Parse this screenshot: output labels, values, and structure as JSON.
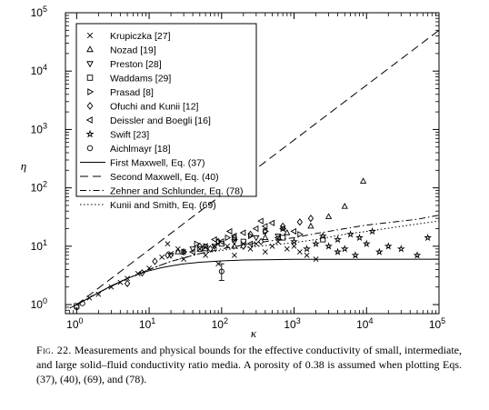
{
  "chart_data": {
    "type": "scatter",
    "xlabel": "κ",
    "ylabel": "η",
    "x_scale": "log",
    "y_scale": "log",
    "xlim": [
      0.7,
      100000
    ],
    "ylim": [
      0.7,
      100000
    ],
    "x_ticks": [
      {
        "value": 1,
        "base": "10",
        "exp": "0"
      },
      {
        "value": 10,
        "base": "10",
        "exp": "1"
      },
      {
        "value": 100,
        "base": "10",
        "exp": "2"
      },
      {
        "value": 1000,
        "base": "10",
        "exp": "3"
      },
      {
        "value": 10000,
        "base": "10",
        "exp": "4"
      },
      {
        "value": 100000,
        "base": "10",
        "exp": "5"
      }
    ],
    "y_ticks": [
      {
        "value": 1,
        "base": "10",
        "exp": "0"
      },
      {
        "value": 10,
        "base": "10",
        "exp": "1"
      },
      {
        "value": 100,
        "base": "10",
        "exp": "2"
      },
      {
        "value": 1000,
        "base": "10",
        "exp": "3"
      },
      {
        "value": 10000,
        "base": "10",
        "exp": "4"
      },
      {
        "value": 100000,
        "base": "10",
        "exp": "5"
      }
    ],
    "legend_position": "top-left",
    "series": [
      {
        "name": "Krupiczka [27]",
        "marker": "x",
        "points": [
          [
            1.5,
            1.3
          ],
          [
            2,
            1.5
          ],
          [
            3,
            2
          ],
          [
            4,
            2.4
          ],
          [
            5,
            2.8
          ],
          [
            7,
            3.4
          ],
          [
            10,
            4.2
          ],
          [
            15,
            6.5
          ],
          [
            20,
            7.5
          ],
          [
            30,
            8
          ],
          [
            50,
            9
          ],
          [
            80,
            10
          ],
          [
            120,
            10
          ],
          [
            200,
            11
          ],
          [
            300,
            11
          ],
          [
            500,
            10
          ],
          [
            800,
            9
          ],
          [
            1200,
            8
          ],
          [
            18,
            11
          ],
          [
            25,
            9
          ],
          [
            60,
            7
          ],
          [
            150,
            7
          ],
          [
            250,
            9
          ],
          [
            400,
            8
          ],
          [
            600,
            12
          ],
          [
            1000,
            10
          ],
          [
            1500,
            7
          ],
          [
            2000,
            6
          ],
          [
            30,
            6
          ],
          [
            90,
            5
          ]
        ]
      },
      {
        "name": "Nozad [19]",
        "marker": "triangle-up",
        "points": [
          [
            9000,
            130
          ],
          [
            5000,
            48
          ],
          [
            3000,
            32
          ],
          [
            1700,
            22
          ],
          [
            800,
            17
          ],
          [
            400,
            14
          ],
          [
            150,
            10
          ],
          [
            60,
            9
          ],
          [
            25,
            8
          ]
        ]
      },
      {
        "name": "Preston [28]",
        "marker": "triangle-down",
        "points": [
          [
            20,
            7
          ],
          [
            40,
            9
          ],
          [
            80,
            10
          ],
          [
            150,
            12
          ],
          [
            300,
            14
          ],
          [
            600,
            15
          ]
        ]
      },
      {
        "name": "Waddams [29]",
        "marker": "square",
        "points": [
          [
            1,
            0.95
          ],
          [
            50,
            9
          ],
          [
            200,
            12
          ],
          [
            700,
            14
          ],
          [
            2500,
            13
          ],
          [
            100,
            11
          ]
        ]
      },
      {
        "name": "Prasad [8]",
        "marker": "triangle-right",
        "points": [
          [
            30,
            8
          ],
          [
            60,
            10
          ],
          [
            90,
            12
          ],
          [
            150,
            13
          ],
          [
            250,
            15
          ],
          [
            400,
            18
          ],
          [
            700,
            20
          ],
          [
            1200,
            16
          ],
          [
            45,
            11
          ],
          [
            120,
            14
          ]
        ]
      },
      {
        "name": "Ofuchi and Kunii [12]",
        "marker": "diamond",
        "points": [
          [
            5,
            2.3
          ],
          [
            8,
            3.5
          ],
          [
            12,
            5.5
          ],
          [
            18,
            7
          ],
          [
            30,
            8
          ],
          [
            50,
            10
          ],
          [
            90,
            12
          ],
          [
            150,
            14
          ],
          [
            250,
            16
          ],
          [
            400,
            18
          ],
          [
            700,
            22
          ],
          [
            1200,
            26
          ],
          [
            1700,
            30
          ],
          [
            70,
            9
          ],
          [
            200,
            10
          ],
          [
            350,
            12
          ]
        ]
      },
      {
        "name": "Deissler and Boegli [16]",
        "marker": "triangle-left",
        "points": [
          [
            40,
            8
          ],
          [
            60,
            10
          ],
          [
            100,
            12
          ],
          [
            150,
            15
          ],
          [
            200,
            17
          ],
          [
            300,
            20
          ],
          [
            400,
            22
          ],
          [
            500,
            25
          ],
          [
            700,
            20
          ],
          [
            1000,
            18
          ],
          [
            80,
            13
          ],
          [
            250,
            11
          ],
          [
            600,
            14
          ],
          [
            130,
            18
          ],
          [
            350,
            27
          ]
        ]
      },
      {
        "name": "Swift [23]",
        "marker": "star",
        "points": [
          [
            1000,
            12
          ],
          [
            1500,
            9
          ],
          [
            2000,
            11
          ],
          [
            3000,
            10
          ],
          [
            4000,
            13
          ],
          [
            5000,
            9
          ],
          [
            6000,
            16
          ],
          [
            8000,
            14
          ],
          [
            10000,
            11
          ],
          [
            15000,
            8
          ],
          [
            20000,
            10
          ],
          [
            30000,
            9
          ],
          [
            50000,
            7
          ],
          [
            70000,
            14
          ],
          [
            7000,
            7
          ],
          [
            12000,
            18
          ],
          [
            2500,
            15
          ],
          [
            4000,
            8
          ]
        ]
      },
      {
        "name": "Aichlmayr [18]",
        "marker": "circle",
        "points": [
          [
            1,
            0.9
          ],
          [
            1.2,
            1.05
          ],
          [
            100,
            3.7
          ]
        ]
      }
    ],
    "error_bar": {
      "x": 100,
      "y": 3.7,
      "y_low": 2.6,
      "y_high": 5.0
    },
    "curves": [
      {
        "name": "First Maxwell, Eq. (37)",
        "style": "solid",
        "points": [
          [
            0.8,
            0.87
          ],
          [
            1,
            1
          ],
          [
            2,
            1.6
          ],
          [
            3,
            2.1
          ],
          [
            5,
            2.8
          ],
          [
            7,
            3.3
          ],
          [
            10,
            3.8
          ],
          [
            15,
            4.3
          ],
          [
            20,
            4.6
          ],
          [
            30,
            5
          ],
          [
            50,
            5.3
          ],
          [
            100,
            5.6
          ],
          [
            200,
            5.8
          ],
          [
            500,
            5.9
          ],
          [
            1000,
            5.95
          ],
          [
            100000,
            6.0
          ]
        ]
      },
      {
        "name": "Second Maxwell, Eq. (40)",
        "style": "dashed",
        "points": [
          [
            1,
            1
          ],
          [
            100000,
            50000
          ]
        ]
      },
      {
        "name": "Zehner and Schlunder, Eq. (78)",
        "style": "dash-dot",
        "points": [
          [
            1,
            1
          ],
          [
            2,
            1.6
          ],
          [
            5,
            2.8
          ],
          [
            10,
            4
          ],
          [
            20,
            5.5
          ],
          [
            50,
            7.5
          ],
          [
            100,
            9
          ],
          [
            200,
            10.5
          ],
          [
            500,
            12.5
          ],
          [
            1000,
            14
          ],
          [
            2000,
            16.5
          ],
          [
            5000,
            20
          ],
          [
            10000,
            23
          ],
          [
            50000,
            29
          ],
          [
            100000,
            34
          ]
        ]
      },
      {
        "name": "Kunii and Smith, Eq. (69)",
        "style": "dotted",
        "points": [
          [
            1,
            1
          ],
          [
            2,
            1.6
          ],
          [
            5,
            2.8
          ],
          [
            10,
            4
          ],
          [
            20,
            5.5
          ],
          [
            50,
            7.5
          ],
          [
            100,
            8.5
          ],
          [
            200,
            9.5
          ],
          [
            500,
            10.5
          ],
          [
            1000,
            11.5
          ],
          [
            2000,
            13
          ],
          [
            5000,
            16
          ],
          [
            10000,
            18
          ],
          [
            50000,
            24
          ],
          [
            100000,
            27
          ]
        ]
      }
    ]
  },
  "caption": {
    "label": "Fig. 22.",
    "text": "Measurements and physical bounds for the effective conductivity of small, intermediate, and large solid–fluid conductivity ratio media. A porosity of 0.38 is assumed when plotting Eqs. (37), (40), (69), and (78)."
  }
}
